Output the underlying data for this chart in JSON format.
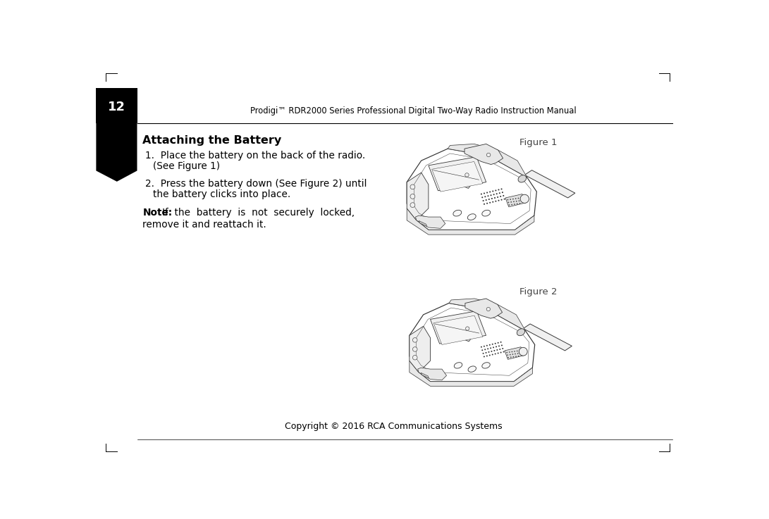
{
  "page_width": 10.91,
  "page_height": 7.37,
  "bg_color": "#ffffff",
  "header_text": "Prodigi™ RDR2000 Series Professional Digital Two-Way Radio Instruction Manual",
  "page_number": "12",
  "copyright_text": "Copyright © 2016 RCA Communications Systems",
  "title": "Attaching the Battery",
  "step1_line1": "1.  Place the battery on the back of the radio.",
  "step1_line2": "     (See Figure 1)",
  "step2_line1": "2.  Press the battery down (See Figure 2) until",
  "step2_line2": "     the battery clicks into place.",
  "note_bold": "Note:",
  "note_rest": "  If  the  battery  is  not  securely  locked,",
  "note_line2": "remove it and reattach it.",
  "figure1_label": "Figure 1",
  "figure2_label": "Figure 2",
  "black_color": "#000000",
  "outline_color": "#333333",
  "light_gray": "#cccccc",
  "mid_gray": "#999999"
}
